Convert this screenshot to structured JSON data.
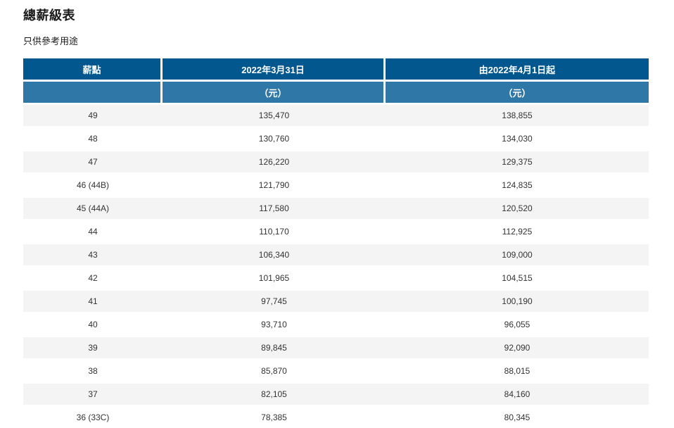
{
  "page": {
    "title": "總薪級表",
    "subtitle": "只供參考用途"
  },
  "table": {
    "header": {
      "col_point": "薪點",
      "col_before": "2022年3月31日",
      "col_after": "由2022年4月1日起",
      "unit_point": "",
      "unit_before": "（元）",
      "unit_after": "（元）"
    },
    "rows": [
      {
        "point": "49",
        "before": "135,470",
        "after": "138,855"
      },
      {
        "point": "48",
        "before": "130,760",
        "after": "134,030"
      },
      {
        "point": "47",
        "before": "126,220",
        "after": "129,375"
      },
      {
        "point": "46 (44B)",
        "before": "121,790",
        "after": "124,835"
      },
      {
        "point": "45 (44A)",
        "before": "117,580",
        "after": "120,520"
      },
      {
        "point": "44",
        "before": "110,170",
        "after": "112,925"
      },
      {
        "point": "43",
        "before": "106,340",
        "after": "109,000"
      },
      {
        "point": "42",
        "before": "101,965",
        "after": "104,515"
      },
      {
        "point": "41",
        "before": "97,745",
        "after": "100,190"
      },
      {
        "point": "40",
        "before": "93,710",
        "after": "96,055"
      },
      {
        "point": "39",
        "before": "89,845",
        "after": "92,090"
      },
      {
        "point": "38",
        "before": "85,870",
        "after": "88,015"
      },
      {
        "point": "37",
        "before": "82,105",
        "after": "84,160"
      },
      {
        "point": "36 (33C)",
        "before": "78,385",
        "after": "80,345"
      }
    ]
  },
  "colors": {
    "header_dark_blue": "#02578F",
    "header_light_blue": "#2E77A7",
    "row_stripe_gray": "#F4F4F4",
    "header_text": "#FFFFFF",
    "body_text": "#333333"
  }
}
